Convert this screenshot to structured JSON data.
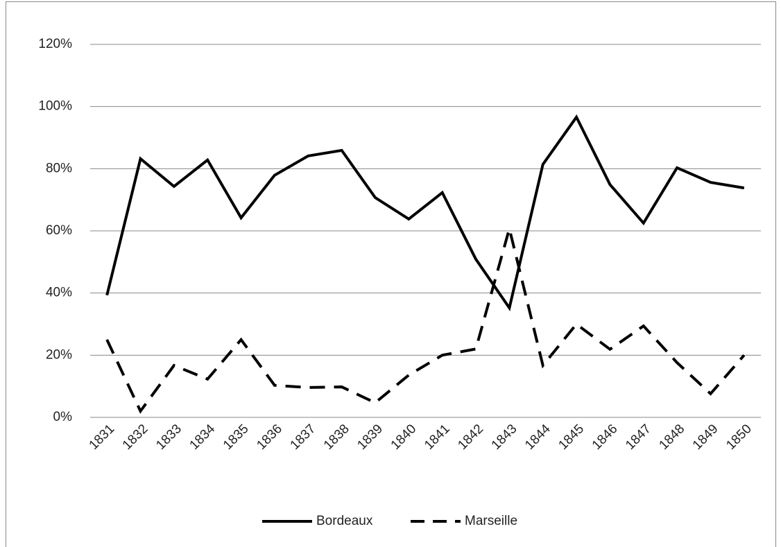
{
  "chart_data": {
    "type": "line",
    "categories": [
      "1831",
      "1832",
      "1833",
      "1834",
      "1835",
      "1836",
      "1837",
      "1838",
      "1839",
      "1840",
      "1841",
      "1842",
      "1843",
      "1844",
      "1845",
      "1846",
      "1847",
      "1848",
      "1849",
      "1850"
    ],
    "series": [
      {
        "name": "Bordeaux",
        "color": "#000000",
        "dash": "solid",
        "values": [
          39.3,
          83.2,
          74.3,
          82.8,
          64.2,
          77.9,
          84.1,
          85.9,
          70.7,
          63.8,
          72.3,
          50.9,
          35.2,
          81.4,
          96.6,
          74.9,
          62.5,
          80.3,
          75.6,
          73.8
        ]
      },
      {
        "name": "Marseille",
        "color": "#000000",
        "dash": "dashed",
        "values": [
          25,
          2,
          16.7,
          12.3,
          25,
          10.3,
          9.6,
          9.8,
          4.7,
          13.6,
          20,
          22,
          60.7,
          16.7,
          30,
          21.9,
          29.4,
          17.6,
          7.6,
          20
        ]
      }
    ],
    "ylim": [
      0,
      120
    ],
    "yticks": [
      {
        "value": 0,
        "label": "0%"
      },
      {
        "value": 20,
        "label": "20%"
      },
      {
        "value": 40,
        "label": "40%"
      },
      {
        "value": 60,
        "label": "60%"
      },
      {
        "value": 80,
        "label": "80%"
      },
      {
        "value": 100,
        "label": "100%"
      },
      {
        "value": 120,
        "label": "120%"
      }
    ],
    "grid": true,
    "legend": "bottom"
  }
}
